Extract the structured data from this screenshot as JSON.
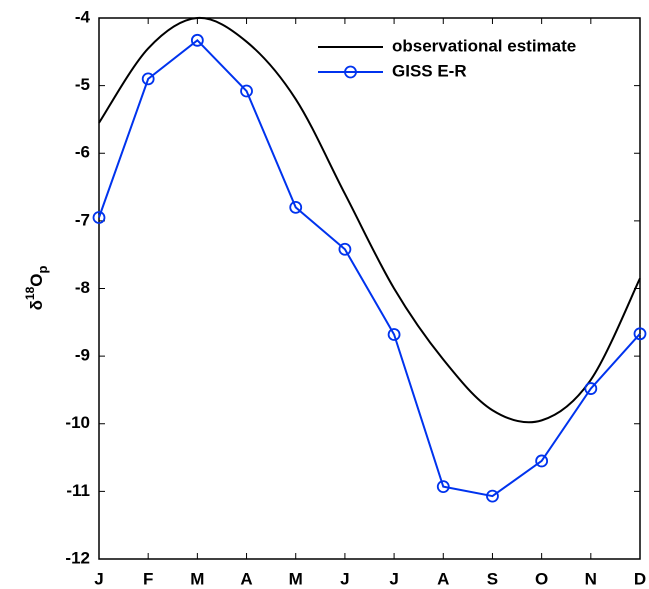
{
  "chart_data": {
    "type": "line",
    "ylabel": [
      "δ",
      "18",
      "O",
      "p"
    ],
    "categories": [
      "J",
      "F",
      "M",
      "A",
      "M",
      "J",
      "J",
      "A",
      "S",
      "O",
      "N",
      "D"
    ],
    "series": [
      {
        "name": "observational estimate",
        "color": "#000000",
        "marker": "none",
        "smooth": true,
        "values": [
          -5.55,
          -4.45,
          -4.0,
          -4.35,
          -5.2,
          -6.6,
          -8.0,
          -9.05,
          -9.8,
          -9.95,
          -9.35,
          -7.85
        ]
      },
      {
        "name": "GISS E-R",
        "color": "#0033ee",
        "marker": "circle",
        "smooth": false,
        "values": [
          -6.95,
          -4.9,
          -4.33,
          -5.08,
          -6.8,
          -7.42,
          -8.68,
          -10.93,
          -11.07,
          -10.55,
          -9.48,
          -8.67
        ]
      }
    ],
    "ylim": [
      -12,
      -4
    ],
    "yticks": [
      -12,
      -11,
      -10,
      -9,
      -8,
      -7,
      -6,
      -5,
      -4
    ],
    "grid": false,
    "legend": "upper-right"
  }
}
